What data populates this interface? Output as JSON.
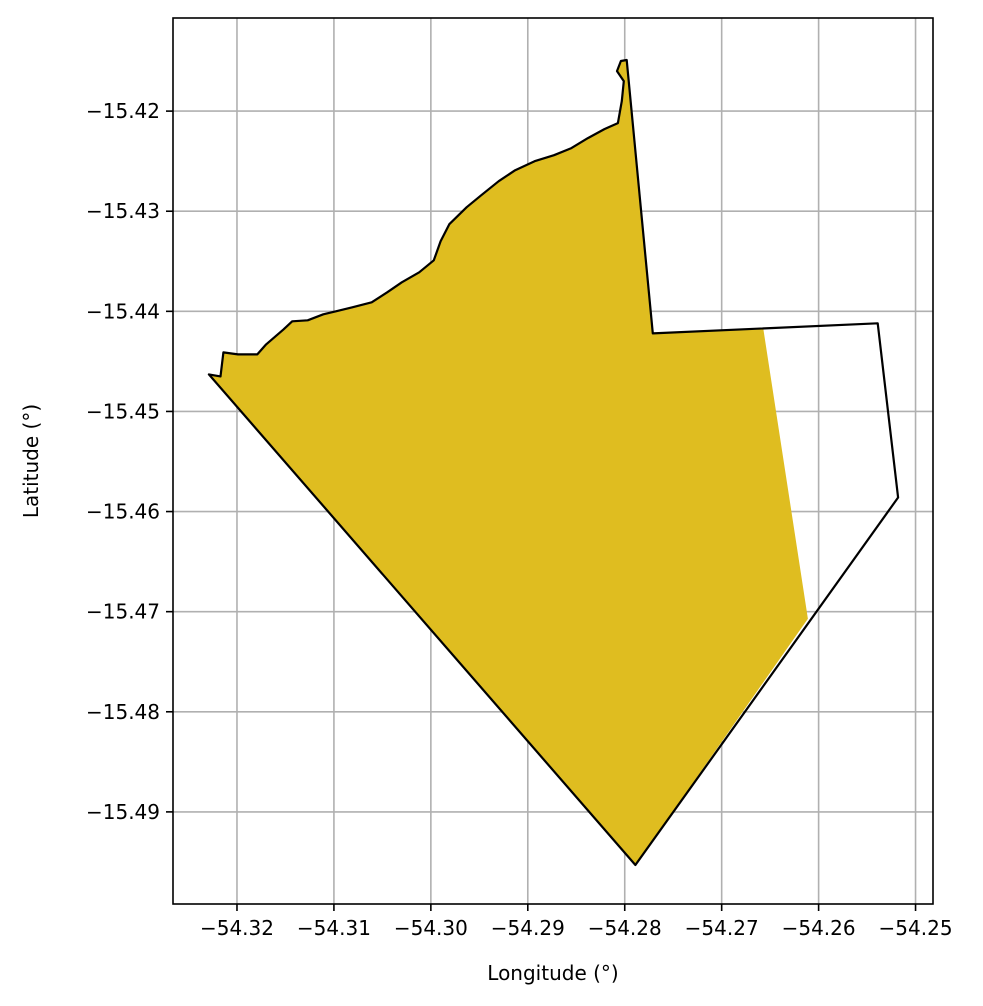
{
  "chart_data": {
    "type": "map",
    "xlabel": "Longitude (°)",
    "ylabel": "Latitude (°)",
    "xlim": [
      -54.3266,
      -54.2482
    ],
    "ylim": [
      -15.4992,
      -15.4107
    ],
    "grid": true,
    "x_ticks": [
      -54.32,
      -54.31,
      -54.3,
      -54.29,
      -54.28,
      -54.27,
      -54.26,
      -54.25
    ],
    "x_tick_labels": [
      "−54.32",
      "−54.31",
      "−54.30",
      "−54.29",
      "−54.28",
      "−54.27",
      "−54.26",
      "−54.25"
    ],
    "y_ticks": [
      -15.42,
      -15.43,
      -15.44,
      -15.45,
      -15.46,
      -15.47,
      -15.48,
      -15.49
    ],
    "y_tick_labels": [
      "−15.42",
      "−15.43",
      "−15.44",
      "−15.45",
      "−15.46",
      "−15.47",
      "−15.48",
      "−15.49"
    ],
    "fill_color": "#dfbd20",
    "outline_color": "#000000",
    "boundary": [
      [
        -54.2798,
        -15.4149
      ],
      [
        -54.2771,
        -15.4422
      ],
      [
        -54.2539,
        -15.4412
      ],
      [
        -54.2518,
        -15.4586
      ],
      [
        -54.2789,
        -15.4953
      ],
      [
        -54.3229,
        -15.4463
      ],
      [
        -54.3217,
        -15.4465
      ],
      [
        -54.3214,
        -15.4441
      ],
      [
        -54.3199,
        -15.4443
      ],
      [
        -54.3179,
        -15.4443
      ],
      [
        -54.317,
        -15.4433
      ],
      [
        -54.3152,
        -15.4418
      ],
      [
        -54.3143,
        -15.441
      ],
      [
        -54.3127,
        -15.4409
      ],
      [
        -54.3111,
        -15.4403
      ],
      [
        -54.3098,
        -15.44
      ],
      [
        -54.3081,
        -15.4396
      ],
      [
        -54.3061,
        -15.4391
      ],
      [
        -54.3045,
        -15.4381
      ],
      [
        -54.303,
        -15.4371
      ],
      [
        -54.3012,
        -15.4361
      ],
      [
        -54.2997,
        -15.4349
      ],
      [
        -54.299,
        -15.433
      ],
      [
        -54.2981,
        -15.4313
      ],
      [
        -54.2963,
        -15.4296
      ],
      [
        -54.2948,
        -15.4284
      ],
      [
        -54.293,
        -15.427
      ],
      [
        -54.2913,
        -15.4259
      ],
      [
        -54.2893,
        -15.425
      ],
      [
        -54.2873,
        -15.4244
      ],
      [
        -54.2855,
        -15.4237
      ],
      [
        -54.2838,
        -15.4227
      ],
      [
        -54.2821,
        -15.4218
      ],
      [
        -54.2807,
        -15.4212
      ],
      [
        -54.2803,
        -15.419
      ],
      [
        -54.2801,
        -15.417
      ],
      [
        -54.2808,
        -15.416
      ],
      [
        -54.2804,
        -15.415
      ],
      [
        -54.2798,
        -15.4149
      ]
    ],
    "fill_polygon": [
      [
        -54.2798,
        -15.4149
      ],
      [
        -54.2771,
        -15.4422
      ],
      [
        -54.2657,
        -15.4418
      ],
      [
        -54.2611,
        -15.4707
      ],
      [
        -54.2789,
        -15.4953
      ],
      [
        -54.3229,
        -15.4463
      ],
      [
        -54.3217,
        -15.4465
      ],
      [
        -54.3214,
        -15.4441
      ],
      [
        -54.3199,
        -15.4443
      ],
      [
        -54.3179,
        -15.4443
      ],
      [
        -54.317,
        -15.4433
      ],
      [
        -54.3152,
        -15.4418
      ],
      [
        -54.3143,
        -15.441
      ],
      [
        -54.3127,
        -15.4409
      ],
      [
        -54.3111,
        -15.4403
      ],
      [
        -54.3098,
        -15.44
      ],
      [
        -54.3081,
        -15.4396
      ],
      [
        -54.3061,
        -15.4391
      ],
      [
        -54.3045,
        -15.4381
      ],
      [
        -54.303,
        -15.4371
      ],
      [
        -54.3012,
        -15.4361
      ],
      [
        -54.2997,
        -15.4349
      ],
      [
        -54.299,
        -15.433
      ],
      [
        -54.2981,
        -15.4313
      ],
      [
        -54.2963,
        -15.4296
      ],
      [
        -54.2948,
        -15.4284
      ],
      [
        -54.293,
        -15.427
      ],
      [
        -54.2913,
        -15.4259
      ],
      [
        -54.2893,
        -15.425
      ],
      [
        -54.2873,
        -15.4244
      ],
      [
        -54.2855,
        -15.4237
      ],
      [
        -54.2838,
        -15.4227
      ],
      [
        -54.2821,
        -15.4218
      ],
      [
        -54.2807,
        -15.4212
      ],
      [
        -54.2803,
        -15.419
      ],
      [
        -54.2801,
        -15.417
      ],
      [
        -54.2808,
        -15.416
      ],
      [
        -54.2804,
        -15.415
      ],
      [
        -54.2798,
        -15.4149
      ]
    ]
  }
}
